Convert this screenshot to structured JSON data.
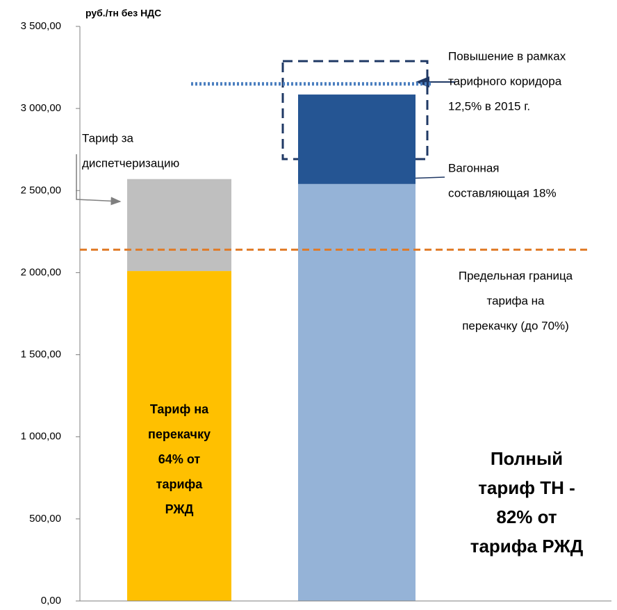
{
  "chart_data": {
    "type": "stacked_bar",
    "y_axis_label": "руб./тн без НДС",
    "ylim": [
      0,
      3500
    ],
    "yticks": [
      {
        "value": 0,
        "label": "0,00"
      },
      {
        "value": 500,
        "label": "500,00"
      },
      {
        "value": 1000,
        "label": "1 000,00"
      },
      {
        "value": 1500,
        "label": "1 500,00"
      },
      {
        "value": 2000,
        "label": "2 000,00"
      },
      {
        "value": 2500,
        "label": "2 500,00"
      },
      {
        "value": 3000,
        "label": "3 000,00"
      },
      {
        "value": 3500,
        "label": "3 500,00"
      }
    ],
    "bars": [
      {
        "segments": [
          {
            "value": 2010,
            "color": "#ffc000"
          },
          {
            "value": 560,
            "color": "#bfbfbf"
          }
        ]
      },
      {
        "segments": [
          {
            "value": 2540,
            "color": "#95b3d7"
          },
          {
            "value": 545,
            "color": "#255593"
          }
        ]
      }
    ],
    "reference_lines": [
      {
        "value": 2140,
        "color": "#e07b28",
        "style": "dashed"
      },
      {
        "value": 3150,
        "color": "#4a7ebf",
        "style": "dotted"
      }
    ],
    "annotations": {
      "dispatch": [
        "Тариф за",
        "диспетчеризацию"
      ],
      "pumping_bar": [
        "Тариф на",
        "перекачку",
        "64% от",
        "тарифа",
        "РЖД"
      ],
      "increase": [
        "Повышение в рамках",
        "тарифного коридора",
        "12,5% в 2015 г."
      ],
      "wagon": [
        "Вагонная",
        "составляющая 18%"
      ],
      "limit": [
        "Предельная граница",
        "тарифа на",
        "перекачку (до 70%)"
      ],
      "full": [
        "Полный",
        "тариф ТН -",
        "82% от",
        "тарифа РЖД"
      ]
    }
  }
}
